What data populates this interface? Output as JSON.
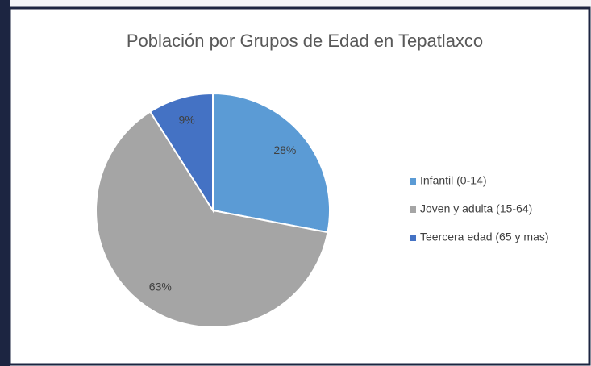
{
  "chart_data": {
    "type": "pie",
    "title": "Población por Grupos de Edad en Tepatlaxco",
    "categories": [
      "Infantil (0-14)",
      "Joven y adulta (15-64)",
      "Teercera edad (65 y mas)"
    ],
    "values": [
      28,
      63,
      9
    ],
    "value_labels": [
      "28%",
      "63%",
      "9%"
    ],
    "colors": [
      "#5b9bd5",
      "#a5a5a5",
      "#4472c4"
    ],
    "legend": "right"
  }
}
